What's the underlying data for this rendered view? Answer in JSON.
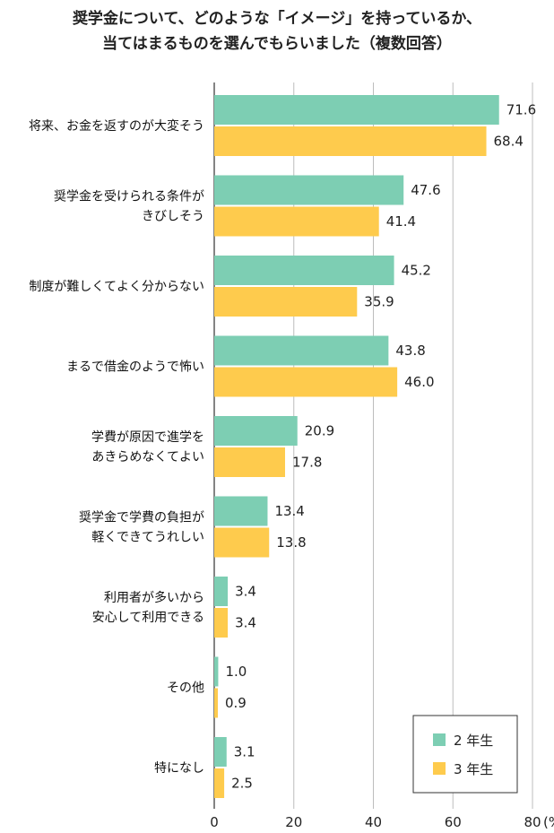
{
  "title_lines": [
    "奨学金について、どのような「イメージ」を持っているか、",
    "当てはまるものを選んでもらいました（複数回答）"
  ],
  "colors": {
    "series1": "#7dceb3",
    "series2": "#fecb4d",
    "grid": "#bdbdbd",
    "axis": "#333333"
  },
  "chart_data": {
    "type": "bar",
    "orientation": "horizontal",
    "categories": [
      [
        "将来、お金を返すのが大変そう"
      ],
      [
        "奨学金を受けられる条件が",
        "きびしそう"
      ],
      [
        "制度が難しくてよく分からない"
      ],
      [
        "まるで借金のようで怖い"
      ],
      [
        "学費が原因で進学を",
        "あきらめなくてよい"
      ],
      [
        "奨学金で学費の負担が",
        "軽くできてうれしい"
      ],
      [
        "利用者が多いから",
        "安心して利用できる"
      ],
      [
        "その他"
      ],
      [
        "特になし"
      ]
    ],
    "series": [
      {
        "name": "2 年生",
        "values": [
          71.6,
          47.6,
          45.2,
          43.8,
          20.9,
          13.4,
          3.4,
          1.0,
          3.1
        ],
        "labels": [
          "71.6",
          "47.6",
          "45.2",
          "43.8",
          "20.9",
          "13.4",
          "3.4",
          "1.0",
          "3.1"
        ]
      },
      {
        "name": "3 年生",
        "values": [
          68.4,
          41.4,
          35.9,
          46.0,
          17.8,
          13.8,
          3.4,
          0.9,
          2.5
        ],
        "labels": [
          "68.4",
          "41.4",
          "35.9",
          "46.0",
          "17.8",
          "13.8",
          "3.4",
          "0.9",
          "2.5"
        ]
      }
    ],
    "xlim": [
      0,
      80
    ],
    "xticks": [
      0,
      20,
      40,
      60,
      80
    ],
    "x_unit": "(%)",
    "grid": true,
    "legend_position": "bottom-right"
  }
}
